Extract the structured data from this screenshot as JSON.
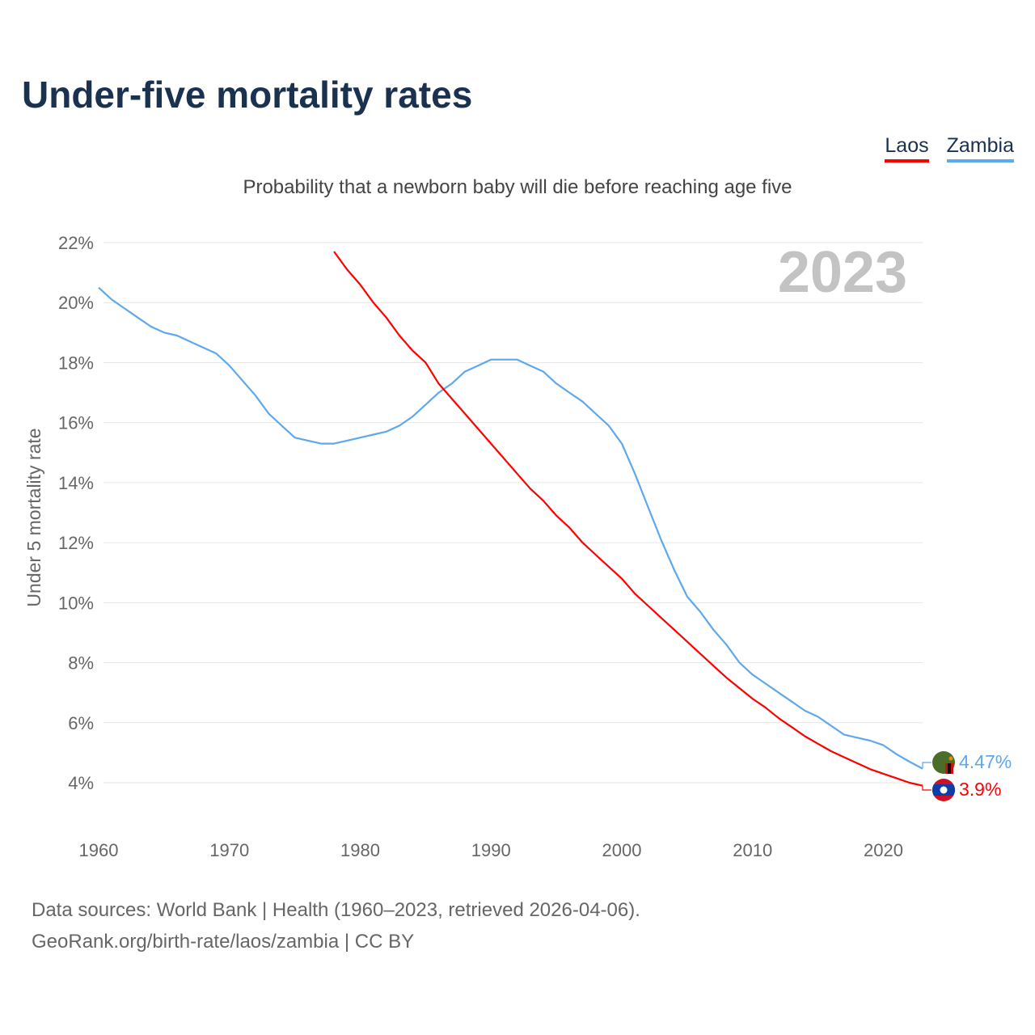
{
  "title": "Under-five mortality rates",
  "subtitle": "Probability that a newborn baby will die before reaching age five",
  "year_badge": "2023",
  "legend": [
    {
      "label": "Laos",
      "color": "#ff0000"
    },
    {
      "label": "Zambia",
      "color": "#5ea8ec"
    }
  ],
  "end_labels": {
    "zambia": "4.47%",
    "laos": "3.9%"
  },
  "source": {
    "line1": "Data sources: World Bank | Health (1960–2023, retrieved 2026-04-06).",
    "line2": "GeoRank.org/birth-rate/laos/zambia | CC BY"
  },
  "chart_data": {
    "type": "line",
    "title": "Under-five mortality rates",
    "ylabel": "Under 5 mortality rate",
    "xlabel": "",
    "xlim": [
      1960,
      2023
    ],
    "ylim": [
      4,
      22
    ],
    "yticks": [
      4,
      6,
      8,
      10,
      12,
      14,
      16,
      18,
      20,
      22
    ],
    "ytick_labels": [
      "4%",
      "6%",
      "8%",
      "10%",
      "12%",
      "14%",
      "16%",
      "18%",
      "20%",
      "22%"
    ],
    "xticks": [
      1960,
      1970,
      1980,
      1990,
      2000,
      2010,
      2020
    ],
    "xtick_labels": [
      "1960",
      "1970",
      "1980",
      "1990",
      "2000",
      "2010",
      "2020"
    ],
    "grid": true,
    "legend_position": "top-right",
    "series": [
      {
        "name": "Zambia",
        "color": "#5ea8ec",
        "start": 1960,
        "values": [
          20.5,
          20.1,
          19.8,
          19.5,
          19.2,
          19.0,
          18.9,
          18.7,
          18.5,
          18.3,
          17.9,
          17.4,
          16.9,
          16.3,
          15.9,
          15.5,
          15.4,
          15.3,
          15.3,
          15.4,
          15.5,
          15.6,
          15.7,
          15.9,
          16.2,
          16.6,
          17.0,
          17.3,
          17.7,
          17.9,
          18.1,
          18.1,
          18.1,
          17.9,
          17.7,
          17.3,
          17.0,
          16.7,
          16.3,
          15.9,
          15.3,
          14.3,
          13.2,
          12.1,
          11.1,
          10.2,
          9.7,
          9.1,
          8.6,
          8.0,
          7.6,
          7.3,
          7.0,
          6.7,
          6.4,
          6.2,
          5.9,
          5.6,
          5.5,
          5.4,
          5.25,
          4.95,
          4.7,
          4.47
        ]
      },
      {
        "name": "Laos",
        "color": "#ff0000",
        "start": 1978,
        "values": [
          21.7,
          21.1,
          20.6,
          20.0,
          19.5,
          18.9,
          18.4,
          18.0,
          17.3,
          16.8,
          16.3,
          15.8,
          15.3,
          14.8,
          14.3,
          13.8,
          13.4,
          12.9,
          12.5,
          12.0,
          11.6,
          11.2,
          10.8,
          10.3,
          9.9,
          9.5,
          9.1,
          8.7,
          8.3,
          7.9,
          7.5,
          7.15,
          6.8,
          6.5,
          6.15,
          5.85,
          5.55,
          5.3,
          5.05,
          4.85,
          4.65,
          4.45,
          4.3,
          4.15,
          4.0,
          3.9
        ]
      }
    ]
  }
}
